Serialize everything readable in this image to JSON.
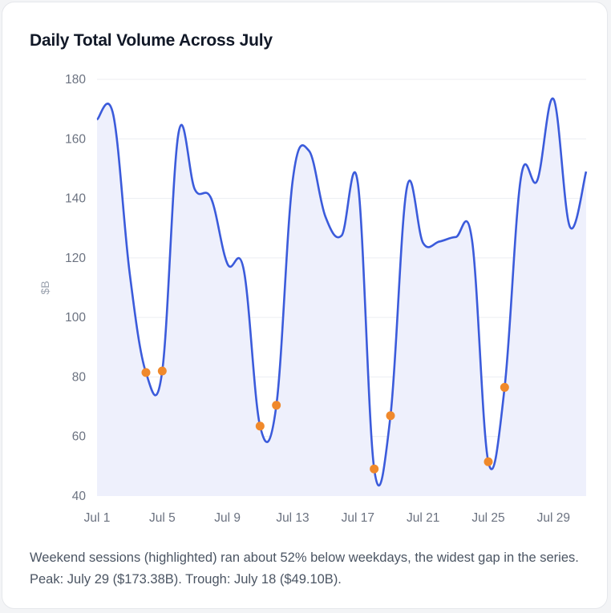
{
  "card": {
    "title": "Daily Total Volume Across July",
    "caption": "Weekend sessions (highlighted) ran about 52% below weekdays, the widest gap in the series. Peak: July 29 ($173.38B). Trough: July 18 ($49.10B)."
  },
  "colors": {
    "line": "#3b5bdb",
    "fill": "#eef0fc",
    "marker": "#f0892b",
    "grid": "#eceef2",
    "tick_text": "#6b7280",
    "axis_label": "#9ca3af"
  },
  "chart_data": {
    "type": "line",
    "ylabel": "$B",
    "ylim": [
      40,
      180
    ],
    "yticks": [
      40,
      60,
      80,
      100,
      120,
      140,
      160,
      180
    ],
    "xtick_labels": [
      "Jul 1",
      "Jul 5",
      "Jul 9",
      "Jul 13",
      "Jul 17",
      "Jul 21",
      "Jul 25",
      "Jul 29"
    ],
    "xtick_days": [
      1,
      5,
      9,
      13,
      17,
      21,
      25,
      29
    ],
    "xlim": [
      1,
      31
    ],
    "grid": true,
    "area_fill": true,
    "x": [
      1,
      2,
      3,
      4,
      5,
      6,
      7,
      8,
      9,
      10,
      11,
      12,
      13,
      14,
      15,
      16,
      17,
      18,
      19,
      20,
      21,
      22,
      23,
      24,
      25,
      26,
      27,
      28,
      29,
      30,
      31
    ],
    "values": [
      166.5,
      168,
      115,
      81.5,
      82,
      162,
      143,
      140,
      118,
      116,
      63.5,
      70.5,
      146,
      156,
      134,
      127.5,
      145,
      49.1,
      67,
      143.5,
      125,
      125.5,
      127,
      126,
      51.5,
      76.5,
      147,
      146,
      173.38,
      130.5,
      149
    ],
    "weekend_days": [
      4,
      5,
      11,
      12,
      18,
      19,
      25,
      26
    ]
  }
}
